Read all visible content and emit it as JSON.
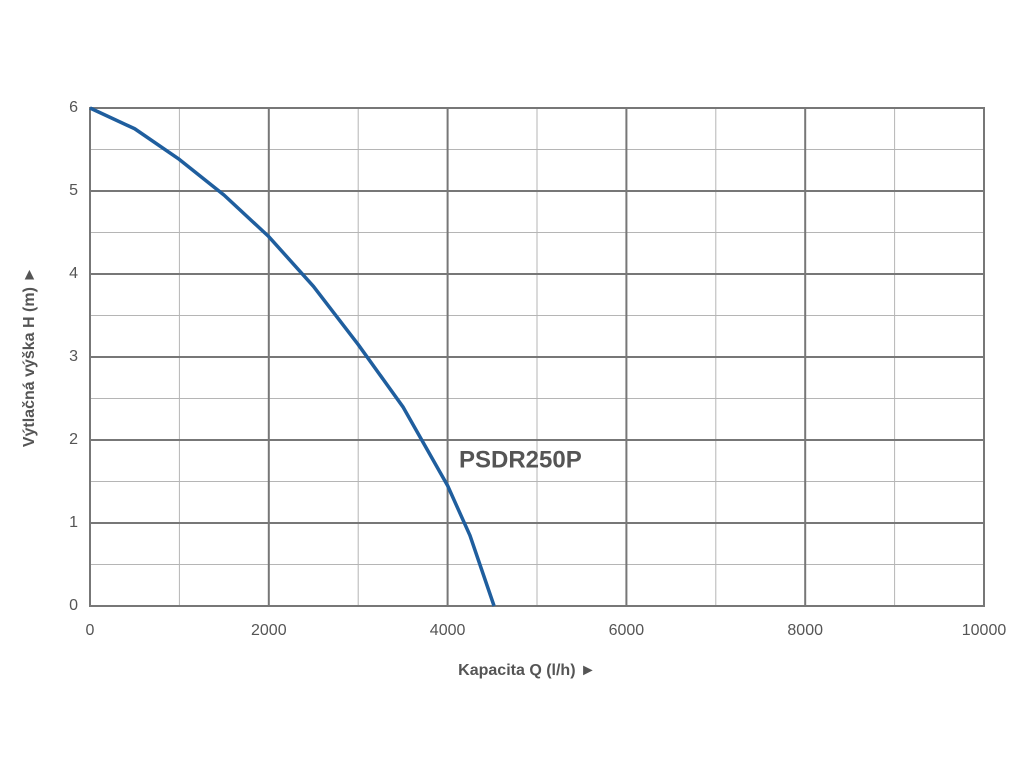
{
  "chart_data": {
    "type": "line",
    "x_label": "Kapacita Q (l/h)   ►",
    "y_label": "Výtlačná výška H (m)   ►",
    "annotation": "PSDR250P",
    "x": [
      0,
      500,
      1000,
      1500,
      2000,
      2500,
      3000,
      3500,
      4000,
      4250,
      4520
    ],
    "series": [
      {
        "color": "#1f5e9e",
        "values": [
          6,
          5.75,
          5.38,
          4.95,
          4.45,
          3.85,
          3.15,
          2.4,
          1.45,
          0.85,
          0
        ]
      }
    ],
    "xlim": [
      0,
      10000
    ],
    "ylim": [
      0,
      6
    ],
    "xticks": [
      0,
      2000,
      4000,
      6000,
      8000,
      10000
    ],
    "yticks": [
      0,
      1,
      2,
      3,
      4,
      5,
      6
    ],
    "xminor": [
      1000,
      3000,
      5000,
      7000,
      9000
    ],
    "yminor": [
      0.5,
      1.5,
      2.5,
      3.5,
      4.5,
      5.5
    ],
    "grid": true
  }
}
